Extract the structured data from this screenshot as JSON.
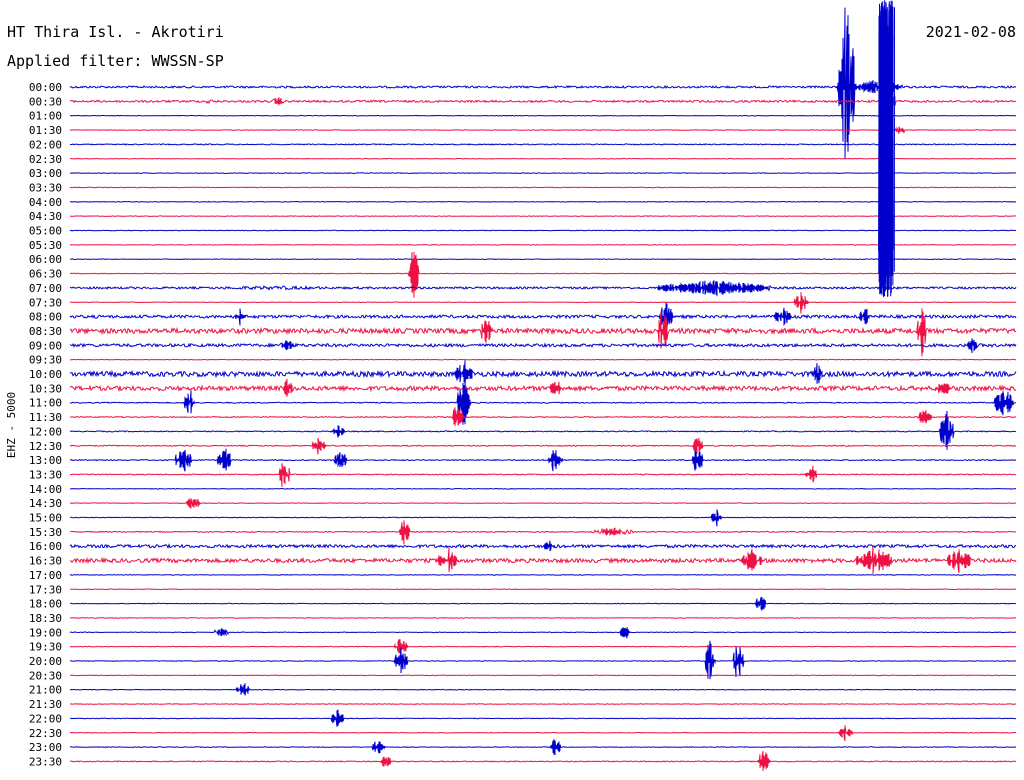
{
  "header": {
    "station": "HT Thira Isl. - Akrotiri",
    "filter": "Applied filter: WWSSN-SP",
    "date": "2021-02-08",
    "channel": "EHZ - 5000"
  },
  "colors": {
    "even_trace": "#0000cc",
    "odd_trace": "#ee1144",
    "background": "#ffffff",
    "text": "#000000"
  },
  "chart_data": {
    "type": "line",
    "title": "HT Thira Isl. - Akrotiri",
    "subtitle": "Applied filter: WWSSN-SP",
    "date": "2021-02-08",
    "ylabel": "EHZ - 5000",
    "row_labels": [
      "00:00",
      "00:30",
      "01:00",
      "01:30",
      "02:00",
      "02:30",
      "03:00",
      "03:30",
      "04:00",
      "04:30",
      "05:00",
      "05:30",
      "06:00",
      "06:30",
      "07:00",
      "07:30",
      "08:00",
      "08:30",
      "09:00",
      "09:30",
      "10:00",
      "10:30",
      "11:00",
      "11:30",
      "12:00",
      "12:30",
      "13:00",
      "13:30",
      "14:00",
      "14:30",
      "15:00",
      "15:30",
      "16:00",
      "16:30",
      "17:00",
      "17:30",
      "18:00",
      "18:30",
      "19:00",
      "19:30",
      "20:00",
      "20:30",
      "21:00",
      "21:30",
      "22:00",
      "22:30",
      "23:00",
      "23:30"
    ],
    "row_minutes": 30,
    "row_noise": [
      1,
      1,
      0.3,
      0.3,
      0.5,
      0.3,
      0.3,
      0.3,
      0.3,
      0.3,
      0.3,
      0.3,
      0.3,
      0.3,
      1,
      0.3,
      1.5,
      2.5,
      1.5,
      0.3,
      2.5,
      2.2,
      0.5,
      0.5,
      0.5,
      0.5,
      0.5,
      0.5,
      0.3,
      0.3,
      0.3,
      0.5,
      1.5,
      2,
      0.3,
      0.3,
      0.3,
      0.3,
      0.3,
      0.3,
      0.3,
      0.3,
      0.3,
      0.3,
      0.3,
      0.3,
      0.3,
      0.5
    ],
    "events": [
      {
        "row": 0,
        "minute": 24.6,
        "amplitude": 90,
        "duration": 0.4
      },
      {
        "row": 0,
        "minute": 25.6,
        "amplitude": 8,
        "duration": 1.5
      },
      {
        "row": 1,
        "minute": 4.4,
        "amplitude": 3,
        "duration": 0.2
      },
      {
        "row": 1,
        "minute": 6.6,
        "amplitude": 5,
        "duration": 0.2
      },
      {
        "row": 1,
        "minute": 26.0,
        "amplitude": 12,
        "duration": 0.3
      },
      {
        "row": 3,
        "minute": 26.3,
        "amplitude": 6,
        "duration": 0.2
      },
      {
        "row": 13,
        "minute": 10.9,
        "amplitude": 28,
        "duration": 0.2
      },
      {
        "row": 14,
        "minute": 6.5,
        "amplitude": 2,
        "duration": 5.0
      },
      {
        "row": 14,
        "minute": 20.4,
        "amplitude": 8,
        "duration": 3.5
      },
      {
        "row": 15,
        "minute": 23.2,
        "amplitude": 12,
        "duration": 0.3
      },
      {
        "row": 16,
        "minute": 5.4,
        "amplitude": 10,
        "duration": 0.2
      },
      {
        "row": 16,
        "minute": 18.9,
        "amplitude": 16,
        "duration": 0.3
      },
      {
        "row": 16,
        "minute": 22.6,
        "amplitude": 12,
        "duration": 0.4
      },
      {
        "row": 16,
        "minute": 25.2,
        "amplitude": 10,
        "duration": 0.2
      },
      {
        "row": 17,
        "minute": 13.2,
        "amplitude": 18,
        "duration": 0.2
      },
      {
        "row": 17,
        "minute": 18.8,
        "amplitude": 28,
        "duration": 0.2
      },
      {
        "row": 17,
        "minute": 27.0,
        "amplitude": 28,
        "duration": 0.2
      },
      {
        "row": 18,
        "minute": 6.9,
        "amplitude": 8,
        "duration": 0.3
      },
      {
        "row": 18,
        "minute": 28.6,
        "amplitude": 8,
        "duration": 0.2
      },
      {
        "row": 20,
        "minute": 12.5,
        "amplitude": 16,
        "duration": 0.4
      },
      {
        "row": 20,
        "minute": 23.7,
        "amplitude": 12,
        "duration": 0.2
      },
      {
        "row": 21,
        "minute": 6.9,
        "amplitude": 12,
        "duration": 0.2
      },
      {
        "row": 21,
        "minute": 15.4,
        "amplitude": 14,
        "duration": 0.2
      },
      {
        "row": 21,
        "minute": 27.7,
        "amplitude": 8,
        "duration": 0.4
      },
      {
        "row": 22,
        "minute": 3.8,
        "amplitude": 18,
        "duration": 0.2
      },
      {
        "row": 22,
        "minute": 12.5,
        "amplitude": 26,
        "duration": 0.3
      },
      {
        "row": 22,
        "minute": 29.6,
        "amplitude": 16,
        "duration": 0.5
      },
      {
        "row": 23,
        "minute": 12.3,
        "amplitude": 16,
        "duration": 0.2
      },
      {
        "row": 23,
        "minute": 27.1,
        "amplitude": 8,
        "duration": 0.3
      },
      {
        "row": 24,
        "minute": 8.5,
        "amplitude": 8,
        "duration": 0.3
      },
      {
        "row": 24,
        "minute": 27.8,
        "amplitude": 25,
        "duration": 0.3
      },
      {
        "row": 25,
        "minute": 7.9,
        "amplitude": 10,
        "duration": 0.3
      },
      {
        "row": 25,
        "minute": 19.9,
        "amplitude": 14,
        "duration": 0.2
      },
      {
        "row": 26,
        "minute": 3.6,
        "amplitude": 14,
        "duration": 0.4
      },
      {
        "row": 26,
        "minute": 4.9,
        "amplitude": 16,
        "duration": 0.3
      },
      {
        "row": 26,
        "minute": 8.6,
        "amplitude": 10,
        "duration": 0.3
      },
      {
        "row": 26,
        "minute": 15.4,
        "amplitude": 16,
        "duration": 0.3
      },
      {
        "row": 26,
        "minute": 19.9,
        "amplitude": 18,
        "duration": 0.2
      },
      {
        "row": 27,
        "minute": 6.8,
        "amplitude": 18,
        "duration": 0.2
      },
      {
        "row": 27,
        "minute": 23.5,
        "amplitude": 16,
        "duration": 0.2
      },
      {
        "row": 29,
        "minute": 3.9,
        "amplitude": 8,
        "duration": 0.3
      },
      {
        "row": 30,
        "minute": 20.5,
        "amplitude": 10,
        "duration": 0.2
      },
      {
        "row": 31,
        "minute": 10.6,
        "amplitude": 14,
        "duration": 0.2
      },
      {
        "row": 31,
        "minute": 17.2,
        "amplitude": 4,
        "duration": 1.2
      },
      {
        "row": 32,
        "minute": 15.2,
        "amplitude": 6,
        "duration": 0.3
      },
      {
        "row": 33,
        "minute": 12.0,
        "amplitude": 14,
        "duration": 0.5
      },
      {
        "row": 33,
        "minute": 21.6,
        "amplitude": 12,
        "duration": 0.5
      },
      {
        "row": 33,
        "minute": 25.5,
        "amplitude": 16,
        "duration": 1.0
      },
      {
        "row": 33,
        "minute": 28.2,
        "amplitude": 14,
        "duration": 0.6
      },
      {
        "row": 36,
        "minute": 21.9,
        "amplitude": 10,
        "duration": 0.2
      },
      {
        "row": 38,
        "minute": 4.8,
        "amplitude": 6,
        "duration": 0.3
      },
      {
        "row": 38,
        "minute": 17.6,
        "amplitude": 8,
        "duration": 0.2
      },
      {
        "row": 39,
        "minute": 10.5,
        "amplitude": 10,
        "duration": 0.3
      },
      {
        "row": 40,
        "minute": 10.5,
        "amplitude": 16,
        "duration": 0.3
      },
      {
        "row": 40,
        "minute": 20.3,
        "amplitude": 28,
        "duration": 0.2
      },
      {
        "row": 40,
        "minute": 21.2,
        "amplitude": 24,
        "duration": 0.2
      },
      {
        "row": 42,
        "minute": 5.5,
        "amplitude": 8,
        "duration": 0.3
      },
      {
        "row": 44,
        "minute": 8.5,
        "amplitude": 10,
        "duration": 0.3
      },
      {
        "row": 45,
        "minute": 24.6,
        "amplitude": 10,
        "duration": 0.3
      },
      {
        "row": 46,
        "minute": 9.8,
        "amplitude": 10,
        "duration": 0.3
      },
      {
        "row": 46,
        "minute": 15.4,
        "amplitude": 10,
        "duration": 0.2
      },
      {
        "row": 47,
        "minute": 22.0,
        "amplitude": 14,
        "duration": 0.3
      },
      {
        "row": 47,
        "minute": 10.0,
        "amplitude": 10,
        "duration": 0.2
      }
    ],
    "main_shock": {
      "start_row": 0,
      "end_row": 14,
      "minute": 25.9,
      "amplitude": 8
    }
  }
}
